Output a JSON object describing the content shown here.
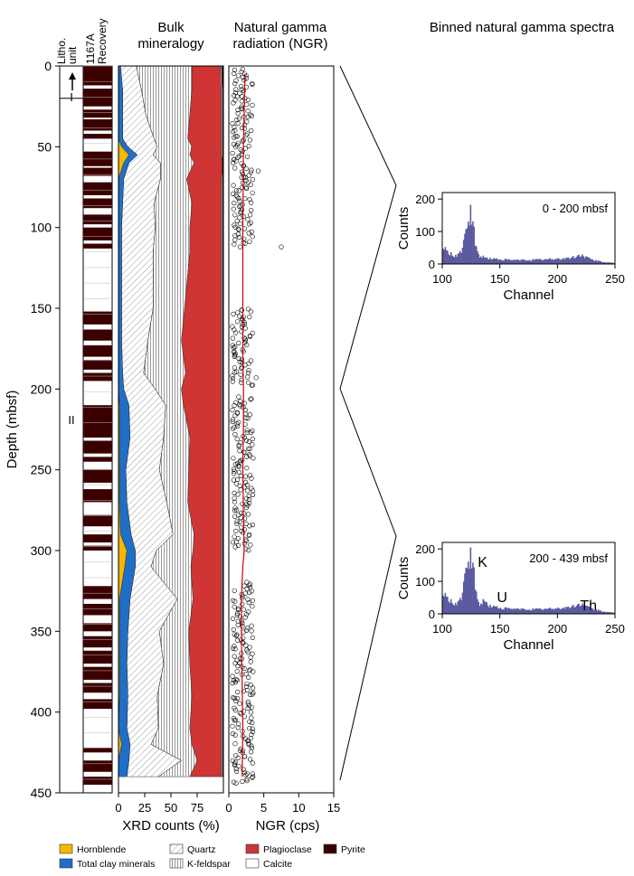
{
  "panel_titles": {
    "mineralogy": [
      "Bulk",
      "mineralogy"
    ],
    "ngr": [
      "Natural gamma",
      "radiation (NGR)"
    ],
    "spectra": "Binned natural gamma spectra"
  },
  "column_headers": {
    "litho": [
      "Litho.",
      "unit"
    ],
    "recovery": [
      "1167A",
      "Recovery"
    ]
  },
  "depth_axis": {
    "label": "Depth (mbsf)",
    "ticks": [
      0,
      50,
      100,
      150,
      200,
      250,
      300,
      350,
      400,
      450
    ],
    "range": [
      0,
      450
    ]
  },
  "litho_units": [
    {
      "label": "I",
      "top": 0,
      "bottom": 20
    },
    {
      "label": "II",
      "top": 20,
      "bottom": 450
    }
  ],
  "recovery_cores": [
    [
      0,
      12
    ],
    [
      14,
      25
    ],
    [
      27,
      32
    ],
    [
      33,
      40
    ],
    [
      42,
      45
    ],
    [
      53,
      62
    ],
    [
      63,
      68
    ],
    [
      72,
      80
    ],
    [
      82,
      88
    ],
    [
      92,
      98
    ],
    [
      100,
      108
    ],
    [
      110,
      113
    ],
    [
      152,
      160
    ],
    [
      163,
      170
    ],
    [
      173,
      180
    ],
    [
      182,
      188
    ],
    [
      190,
      195
    ],
    [
      210,
      230
    ],
    [
      232,
      240
    ],
    [
      242,
      245
    ],
    [
      250,
      258
    ],
    [
      262,
      270
    ],
    [
      278,
      285
    ],
    [
      290,
      295
    ],
    [
      297,
      300
    ],
    [
      322,
      330
    ],
    [
      333,
      340
    ],
    [
      345,
      350
    ],
    [
      353,
      360
    ],
    [
      362,
      370
    ],
    [
      372,
      380
    ],
    [
      382,
      388
    ],
    [
      392,
      398
    ],
    [
      422,
      425
    ],
    [
      430,
      437
    ],
    [
      440,
      445
    ]
  ],
  "mineralogy_axis": {
    "label": "XRD counts (%)",
    "ticks": [
      0,
      25,
      50,
      75
    ],
    "range": [
      0,
      100
    ]
  },
  "ngr_axis": {
    "label": "NGR (cps)",
    "ticks": [
      0,
      5,
      10,
      15
    ],
    "range": [
      0,
      15
    ]
  },
  "legend": [
    {
      "label": "Hornblende",
      "color": "#f5b800",
      "pattern": "solid"
    },
    {
      "label": "Total clay minerals",
      "color": "#1f6fc8",
      "pattern": "solid"
    },
    {
      "label": "Quartz",
      "color": "#ffffff",
      "pattern": "diag"
    },
    {
      "label": "K-feldspar",
      "color": "#ffffff",
      "pattern": "vert"
    },
    {
      "label": "Plagioclase",
      "color": "#cf3535",
      "pattern": "solid"
    },
    {
      "label": "Calcite",
      "color": "#ffffff",
      "pattern": "solid"
    },
    {
      "label": "Pyrite",
      "color": "#3a0000",
      "pattern": "solid"
    }
  ],
  "spectra_labels": {
    "ylabel": "Counts",
    "xlabel": "Channel",
    "yticks": [
      0,
      100,
      200
    ],
    "xticks": [
      100,
      150,
      200,
      250
    ],
    "upper_range": "0 - 200 mbsf",
    "lower_range": "200 - 439 mbsf",
    "peaks": [
      "K",
      "U",
      "Th"
    ]
  },
  "chart_data": [
    {
      "type": "area",
      "title": "Bulk mineralogy",
      "xlabel": "XRD counts (%)",
      "ylabel": "Depth (mbsf)",
      "xlim": [
        0,
        100
      ],
      "ylim": [
        0,
        450
      ],
      "depth": [
        0,
        15,
        30,
        45,
        50,
        55,
        60,
        70,
        85,
        100,
        115,
        150,
        170,
        190,
        200,
        210,
        230,
        250,
        270,
        290,
        300,
        310,
        330,
        350,
        370,
        390,
        410,
        420,
        430,
        440
      ],
      "series": [
        {
          "name": "Hornblende",
          "values": [
            0,
            0,
            0,
            0,
            3,
            10,
            5,
            0,
            0,
            0,
            0,
            0,
            0,
            0,
            0,
            1,
            1,
            1,
            1,
            2,
            8,
            6,
            1,
            1,
            1,
            1,
            0,
            3,
            0,
            0
          ]
        },
        {
          "name": "Total clay minerals",
          "values": [
            2,
            4,
            4,
            4,
            6,
            8,
            5,
            5,
            4,
            3,
            3,
            3,
            3,
            4,
            5,
            9,
            10,
            6,
            7,
            10,
            8,
            10,
            10,
            8,
            7,
            8,
            8,
            8,
            10,
            8
          ]
        },
        {
          "name": "Quartz",
          "values": [
            15,
            18,
            22,
            30,
            28,
            15,
            30,
            35,
            30,
            32,
            30,
            30,
            25,
            20,
            30,
            35,
            32,
            32,
            38,
            40,
            20,
            15,
            45,
            30,
            35,
            28,
            30,
            20,
            50,
            30
          ]
        },
        {
          "name": "K-feldspar",
          "values": [
            53,
            48,
            42,
            32,
            33,
            35,
            32,
            25,
            36,
            33,
            35,
            30,
            32,
            40,
            25,
            17,
            25,
            28,
            20,
            20,
            35,
            38,
            15,
            28,
            25,
            33,
            30,
            39,
            15,
            30
          ]
        },
        {
          "name": "Plagioclase",
          "values": [
            27,
            28,
            30,
            32,
            28,
            30,
            27,
            33,
            28,
            30,
            30,
            35,
            38,
            34,
            38,
            36,
            30,
            31,
            32,
            26,
            27,
            29,
            27,
            31,
            30,
            28,
            30,
            28,
            23,
            30
          ]
        },
        {
          "name": "Calcite",
          "values": [
            1,
            1,
            1,
            1,
            1,
            1,
            0,
            1,
            1,
            1,
            1,
            1,
            1,
            1,
            1,
            1,
            1,
            1,
            1,
            1,
            1,
            1,
            1,
            1,
            1,
            1,
            1,
            1,
            1,
            1
          ]
        },
        {
          "name": "Pyrite",
          "values": [
            2,
            1,
            1,
            1,
            1,
            1,
            1,
            1,
            1,
            1,
            1,
            1,
            1,
            1,
            1,
            1,
            1,
            1,
            1,
            1,
            1,
            1,
            1,
            1,
            1,
            1,
            1,
            1,
            1,
            1
          ]
        }
      ]
    },
    {
      "type": "scatter",
      "title": "Natural gamma radiation (NGR)",
      "xlabel": "NGR (cps)",
      "ylabel": "Depth (mbsf)",
      "xlim": [
        0,
        15
      ],
      "ylim": [
        0,
        450
      ],
      "depth_intervals": [
        [
          2,
          112
        ],
        [
          150,
          198
        ],
        [
          205,
          300
        ],
        [
          320,
          445
        ]
      ],
      "typical_range": [
        0.5,
        3.5
      ],
      "outliers": [
        {
          "x": 7.5,
          "y": 112
        },
        {
          "x": 4.2,
          "y": 65
        },
        {
          "x": 3.9,
          "y": 193
        }
      ],
      "trend": {
        "x": [
          2.3,
          2.1,
          2.0,
          2.0,
          2.0,
          2.1,
          2.1,
          2.0,
          2.1,
          2.2,
          2.0,
          1.8,
          1.8,
          1.9,
          2.0,
          1.9
        ],
        "y": [
          5,
          50,
          100,
          150,
          180,
          200,
          220,
          250,
          280,
          300,
          310,
          330,
          350,
          380,
          410,
          440
        ]
      }
    },
    {
      "type": "bar",
      "title": "0 - 200 mbsf",
      "xlabel": "Channel",
      "ylabel": "Counts",
      "xlim": [
        100,
        250
      ],
      "ylim": [
        0,
        220
      ],
      "x": [
        100,
        104,
        108,
        112,
        116,
        118,
        120,
        122,
        124,
        126,
        128,
        130,
        132,
        136,
        140,
        150,
        160,
        170,
        180,
        190,
        200,
        210,
        215,
        220,
        225,
        230,
        240,
        250
      ],
      "values": [
        50,
        35,
        28,
        25,
        40,
        60,
        90,
        130,
        165,
        125,
        60,
        35,
        25,
        20,
        17,
        14,
        12,
        12,
        13,
        14,
        16,
        18,
        22,
        28,
        20,
        12,
        6,
        2
      ]
    },
    {
      "type": "bar",
      "title": "200 - 439 mbsf",
      "xlabel": "Channel",
      "ylabel": "Counts",
      "xlim": [
        100,
        250
      ],
      "ylim": [
        0,
        220
      ],
      "x": [
        100,
        104,
        108,
        112,
        116,
        118,
        120,
        122,
        124,
        126,
        128,
        130,
        132,
        136,
        140,
        150,
        160,
        170,
        180,
        190,
        200,
        210,
        215,
        220,
        225,
        230,
        240,
        250
      ],
      "values": [
        60,
        45,
        35,
        30,
        50,
        80,
        120,
        160,
        185,
        150,
        80,
        40,
        30,
        40,
        25,
        18,
        15,
        14,
        14,
        15,
        17,
        20,
        25,
        30,
        22,
        14,
        7,
        2
      ]
    }
  ]
}
